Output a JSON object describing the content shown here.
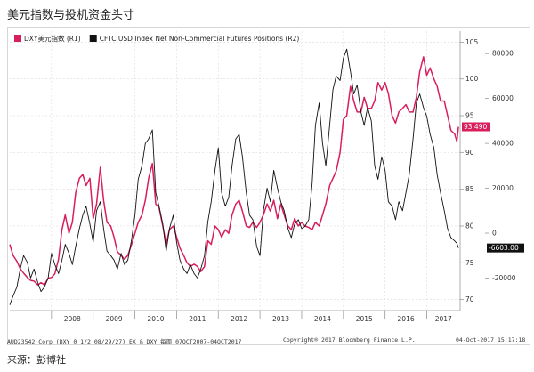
{
  "header": {
    "title": "美元指数与投机资金头寸"
  },
  "chart_data": {
    "type": "line",
    "legend": "top-left",
    "series": [
      {
        "name": "DXY美元指数 (R1)",
        "axis": "R1",
        "color": "#d81e5b",
        "points": [
          [
            2007.0,
            77.5
          ],
          [
            2007.08,
            76.0
          ],
          [
            2007.17,
            75.2
          ],
          [
            2007.25,
            74.2
          ],
          [
            2007.33,
            73.6
          ],
          [
            2007.42,
            73.0
          ],
          [
            2007.5,
            72.6
          ],
          [
            2007.58,
            72.5
          ],
          [
            2007.67,
            72.0
          ],
          [
            2007.75,
            72.3
          ],
          [
            2007.83,
            72.0
          ],
          [
            2007.92,
            72.9
          ],
          [
            2008.0,
            73.0
          ],
          [
            2008.08,
            73.5
          ],
          [
            2008.17,
            75.5
          ],
          [
            2008.25,
            79.5
          ],
          [
            2008.33,
            81.5
          ],
          [
            2008.42,
            79.0
          ],
          [
            2008.5,
            80.5
          ],
          [
            2008.58,
            84.5
          ],
          [
            2008.67,
            86.5
          ],
          [
            2008.75,
            87.0
          ],
          [
            2008.83,
            85.5
          ],
          [
            2008.92,
            86.5
          ],
          [
            2009.0,
            81.0
          ],
          [
            2009.08,
            83.0
          ],
          [
            2009.17,
            88.0
          ],
          [
            2009.25,
            83.5
          ],
          [
            2009.33,
            80.5
          ],
          [
            2009.42,
            80.0
          ],
          [
            2009.5,
            78.5
          ],
          [
            2009.58,
            76.5
          ],
          [
            2009.67,
            76.0
          ],
          [
            2009.75,
            75.5
          ],
          [
            2009.83,
            76.0
          ],
          [
            2009.92,
            77.5
          ],
          [
            2010.0,
            79.0
          ],
          [
            2010.08,
            80.5
          ],
          [
            2010.17,
            81.5
          ],
          [
            2010.25,
            83.5
          ],
          [
            2010.33,
            86.5
          ],
          [
            2010.42,
            88.5
          ],
          [
            2010.5,
            83.0
          ],
          [
            2010.58,
            82.5
          ],
          [
            2010.67,
            80.0
          ],
          [
            2010.75,
            77.5
          ],
          [
            2010.83,
            79.5
          ],
          [
            2010.92,
            80.0
          ],
          [
            2011.0,
            78.5
          ],
          [
            2011.08,
            77.0
          ],
          [
            2011.17,
            76.0
          ],
          [
            2011.25,
            75.0
          ],
          [
            2011.33,
            74.5
          ],
          [
            2011.42,
            74.8
          ],
          [
            2011.5,
            74.5
          ],
          [
            2011.58,
            73.8
          ],
          [
            2011.67,
            74.5
          ],
          [
            2011.75,
            78.0
          ],
          [
            2011.83,
            77.5
          ],
          [
            2011.92,
            80.0
          ],
          [
            2012.0,
            79.5
          ],
          [
            2012.08,
            78.5
          ],
          [
            2012.17,
            79.5
          ],
          [
            2012.25,
            79.0
          ],
          [
            2012.33,
            81.5
          ],
          [
            2012.42,
            83.0
          ],
          [
            2012.5,
            83.5
          ],
          [
            2012.58,
            82.0
          ],
          [
            2012.67,
            80.0
          ],
          [
            2012.75,
            79.8
          ],
          [
            2012.83,
            80.5
          ],
          [
            2012.92,
            79.8
          ],
          [
            2013.0,
            80.5
          ],
          [
            2013.08,
            81.5
          ],
          [
            2013.17,
            83.0
          ],
          [
            2013.25,
            82.0
          ],
          [
            2013.33,
            83.5
          ],
          [
            2013.42,
            81.0
          ],
          [
            2013.5,
            83.0
          ],
          [
            2013.58,
            81.5
          ],
          [
            2013.67,
            80.0
          ],
          [
            2013.75,
            79.5
          ],
          [
            2013.83,
            81.0
          ],
          [
            2013.92,
            80.0
          ],
          [
            2014.0,
            80.5
          ],
          [
            2014.08,
            80.0
          ],
          [
            2014.17,
            79.8
          ],
          [
            2014.25,
            79.5
          ],
          [
            2014.33,
            80.5
          ],
          [
            2014.42,
            80.0
          ],
          [
            2014.5,
            81.5
          ],
          [
            2014.58,
            83.0
          ],
          [
            2014.67,
            85.5
          ],
          [
            2014.75,
            86.5
          ],
          [
            2014.83,
            87.5
          ],
          [
            2014.92,
            90.0
          ],
          [
            2015.0,
            94.5
          ],
          [
            2015.08,
            95.0
          ],
          [
            2015.17,
            99.0
          ],
          [
            2015.25,
            97.0
          ],
          [
            2015.33,
            95.5
          ],
          [
            2015.42,
            95.5
          ],
          [
            2015.5,
            97.5
          ],
          [
            2015.58,
            96.0
          ],
          [
            2015.67,
            96.0
          ],
          [
            2015.75,
            97.0
          ],
          [
            2015.83,
            99.5
          ],
          [
            2015.92,
            98.5
          ],
          [
            2016.0,
            99.5
          ],
          [
            2016.08,
            98.0
          ],
          [
            2016.17,
            95.0
          ],
          [
            2016.25,
            94.0
          ],
          [
            2016.33,
            95.5
          ],
          [
            2016.42,
            96.0
          ],
          [
            2016.5,
            96.5
          ],
          [
            2016.58,
            95.5
          ],
          [
            2016.67,
            95.5
          ],
          [
            2016.75,
            97.5
          ],
          [
            2016.83,
            101.0
          ],
          [
            2016.92,
            103.0
          ],
          [
            2017.0,
            100.5
          ],
          [
            2017.08,
            101.5
          ],
          [
            2017.17,
            100.0
          ],
          [
            2017.25,
            99.0
          ],
          [
            2017.33,
            97.0
          ],
          [
            2017.42,
            97.0
          ],
          [
            2017.5,
            95.0
          ],
          [
            2017.58,
            93.0
          ],
          [
            2017.67,
            92.5
          ],
          [
            2017.72,
            91.5
          ],
          [
            2017.76,
            93.49
          ]
        ],
        "last_value": "93.490"
      },
      {
        "name": "CFTC USD Index Net Non-Commercial Futures Positions (R2)",
        "axis": "R2",
        "color": "#111111",
        "points": [
          [
            2007.0,
            -32000
          ],
          [
            2007.08,
            -28000
          ],
          [
            2007.17,
            -24000
          ],
          [
            2007.25,
            -16000
          ],
          [
            2007.33,
            -10000
          ],
          [
            2007.42,
            -13000
          ],
          [
            2007.5,
            -20000
          ],
          [
            2007.58,
            -16000
          ],
          [
            2007.67,
            -22000
          ],
          [
            2007.75,
            -26000
          ],
          [
            2007.83,
            -24000
          ],
          [
            2007.92,
            -20000
          ],
          [
            2008.0,
            -9000
          ],
          [
            2008.08,
            -14000
          ],
          [
            2008.17,
            -18000
          ],
          [
            2008.25,
            -12000
          ],
          [
            2008.33,
            -5000
          ],
          [
            2008.42,
            -9000
          ],
          [
            2008.5,
            -14000
          ],
          [
            2008.58,
            -6000
          ],
          [
            2008.67,
            2000
          ],
          [
            2008.75,
            8000
          ],
          [
            2008.83,
            12000
          ],
          [
            2008.92,
            4000
          ],
          [
            2009.0,
            -4000
          ],
          [
            2009.08,
            10000
          ],
          [
            2009.17,
            14000
          ],
          [
            2009.25,
            2000
          ],
          [
            2009.33,
            -8000
          ],
          [
            2009.42,
            -10000
          ],
          [
            2009.5,
            -12000
          ],
          [
            2009.58,
            -16000
          ],
          [
            2009.67,
            -9000
          ],
          [
            2009.75,
            -14000
          ],
          [
            2009.83,
            -12000
          ],
          [
            2009.92,
            -3000
          ],
          [
            2010.0,
            8000
          ],
          [
            2010.08,
            24000
          ],
          [
            2010.17,
            30000
          ],
          [
            2010.25,
            40000
          ],
          [
            2010.33,
            42000
          ],
          [
            2010.42,
            46000
          ],
          [
            2010.5,
            18000
          ],
          [
            2010.58,
            12000
          ],
          [
            2010.67,
            4000
          ],
          [
            2010.75,
            -8000
          ],
          [
            2010.83,
            2000
          ],
          [
            2010.92,
            8000
          ],
          [
            2011.0,
            -4000
          ],
          [
            2011.08,
            -12000
          ],
          [
            2011.17,
            -16000
          ],
          [
            2011.25,
            -18000
          ],
          [
            2011.33,
            -14000
          ],
          [
            2011.42,
            -18000
          ],
          [
            2011.5,
            -20000
          ],
          [
            2011.58,
            -16000
          ],
          [
            2011.67,
            -10000
          ],
          [
            2011.75,
            5000
          ],
          [
            2011.83,
            14000
          ],
          [
            2011.92,
            28000
          ],
          [
            2012.0,
            38000
          ],
          [
            2012.08,
            18000
          ],
          [
            2012.17,
            12000
          ],
          [
            2012.25,
            16000
          ],
          [
            2012.33,
            30000
          ],
          [
            2012.42,
            42000
          ],
          [
            2012.5,
            44000
          ],
          [
            2012.58,
            34000
          ],
          [
            2012.67,
            18000
          ],
          [
            2012.75,
            8000
          ],
          [
            2012.83,
            6000
          ],
          [
            2012.92,
            -6000
          ],
          [
            2013.0,
            -10000
          ],
          [
            2013.08,
            10000
          ],
          [
            2013.17,
            20000
          ],
          [
            2013.25,
            14000
          ],
          [
            2013.33,
            28000
          ],
          [
            2013.42,
            20000
          ],
          [
            2013.5,
            14000
          ],
          [
            2013.58,
            10000
          ],
          [
            2013.67,
            2000
          ],
          [
            2013.75,
            -2000
          ],
          [
            2013.83,
            4000
          ],
          [
            2013.92,
            6000
          ],
          [
            2014.0,
            2000
          ],
          [
            2014.08,
            3000
          ],
          [
            2014.17,
            6000
          ],
          [
            2014.25,
            22000
          ],
          [
            2014.33,
            48000
          ],
          [
            2014.42,
            58000
          ],
          [
            2014.5,
            40000
          ],
          [
            2014.58,
            30000
          ],
          [
            2014.67,
            48000
          ],
          [
            2014.75,
            64000
          ],
          [
            2014.83,
            70000
          ],
          [
            2014.92,
            68000
          ],
          [
            2015.0,
            78000
          ],
          [
            2015.08,
            82000
          ],
          [
            2015.17,
            72000
          ],
          [
            2015.25,
            62000
          ],
          [
            2015.33,
            66000
          ],
          [
            2015.42,
            54000
          ],
          [
            2015.5,
            48000
          ],
          [
            2015.58,
            56000
          ],
          [
            2015.67,
            50000
          ],
          [
            2015.75,
            30000
          ],
          [
            2015.83,
            24000
          ],
          [
            2015.92,
            34000
          ],
          [
            2016.0,
            28000
          ],
          [
            2016.08,
            14000
          ],
          [
            2016.17,
            12000
          ],
          [
            2016.25,
            6000
          ],
          [
            2016.33,
            14000
          ],
          [
            2016.42,
            10000
          ],
          [
            2016.5,
            18000
          ],
          [
            2016.58,
            26000
          ],
          [
            2016.67,
            42000
          ],
          [
            2016.75,
            58000
          ],
          [
            2016.83,
            62000
          ],
          [
            2016.92,
            56000
          ],
          [
            2017.0,
            52000
          ],
          [
            2017.08,
            44000
          ],
          [
            2017.17,
            38000
          ],
          [
            2017.25,
            26000
          ],
          [
            2017.33,
            18000
          ],
          [
            2017.42,
            10000
          ],
          [
            2017.5,
            2000
          ],
          [
            2017.58,
            -2000
          ],
          [
            2017.67,
            -3500
          ],
          [
            2017.72,
            -4500
          ],
          [
            2017.76,
            -6603
          ]
        ],
        "last_value": "-6603.00"
      }
    ],
    "x_range": [
      2007.0,
      2017.8
    ],
    "x_ticks": [
      {
        "label": "2008",
        "year": 2008
      },
      {
        "label": "2009",
        "year": 2009
      },
      {
        "label": "2010",
        "year": 2010
      },
      {
        "label": "2011",
        "year": 2011
      },
      {
        "label": "2012",
        "year": 2012
      },
      {
        "label": "2013",
        "year": 2013
      },
      {
        "label": "2014",
        "year": 2014
      },
      {
        "label": "2015",
        "year": 2015
      },
      {
        "label": "2016",
        "year": 2016
      },
      {
        "label": "2017",
        "year": 2017
      }
    ],
    "y1_range": [
      68.5,
      106.5
    ],
    "y1_ticks": [
      70,
      75,
      80,
      85,
      90,
      95,
      100,
      105
    ],
    "y2_range": [
      -34500,
      90000
    ],
    "y2_ticks": [
      {
        "value": 80000,
        "label": "80000"
      },
      {
        "value": 60000,
        "label": "60000"
      },
      {
        "value": 40000,
        "label": "40000"
      },
      {
        "value": 20000,
        "label": "20000"
      },
      {
        "value": 0,
        "label": "0"
      },
      {
        "value": -20000,
        "label": "-20000"
      }
    ],
    "grid": true
  },
  "footer": {
    "left": "AUD23542 Corp (DXY 0 1/2 08/29/27) EX & DXY  每周 07OCT2007-04OCT2017",
    "middle": "Copyright® 2017 Bloomberg Finance L.P.",
    "right": "04-Oct-2017 15:17:18"
  },
  "source": "来源：彭博社"
}
